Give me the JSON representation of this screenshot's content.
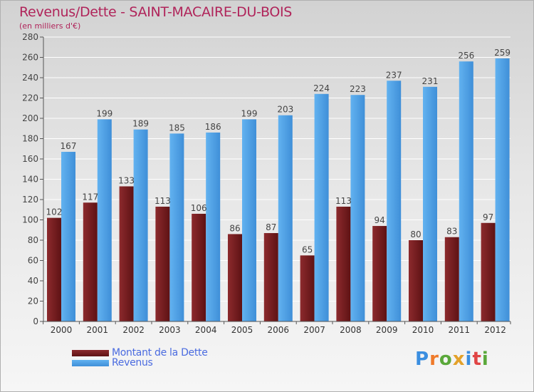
{
  "chart_data": {
    "type": "bar",
    "title": "Revenus/Dette - SAINT-MACAIRE-DU-BOIS",
    "subtitle": "(en milliers d'€)",
    "categories": [
      "2000",
      "2001",
      "2002",
      "2003",
      "2004",
      "2005",
      "2006",
      "2007",
      "2008",
      "2009",
      "2010",
      "2011",
      "2012"
    ],
    "series": [
      {
        "name": "Montant de la Dette",
        "color": "#7a1f22",
        "values": [
          102,
          117,
          133,
          113,
          106,
          86,
          87,
          65,
          113,
          94,
          80,
          83,
          97
        ]
      },
      {
        "name": "Revenus",
        "color": "#4a9fe3",
        "values": [
          167,
          199,
          189,
          185,
          186,
          199,
          203,
          224,
          223,
          237,
          231,
          256,
          259
        ]
      }
    ],
    "ylim": [
      0,
      280
    ],
    "yticks": [
      0,
      20,
      40,
      60,
      80,
      100,
      120,
      140,
      160,
      180,
      200,
      220,
      240,
      260,
      280
    ],
    "grid": true,
    "legend_position": "bottom-left"
  },
  "logo": {
    "letters": [
      "P",
      "r",
      "o",
      "x",
      "i",
      "t",
      "i"
    ],
    "colors": [
      "#3a8ee0",
      "#ef7a2a",
      "#5aa83a",
      "#e3a12a",
      "#3a8ee0",
      "#e04545",
      "#5aa83a"
    ]
  }
}
